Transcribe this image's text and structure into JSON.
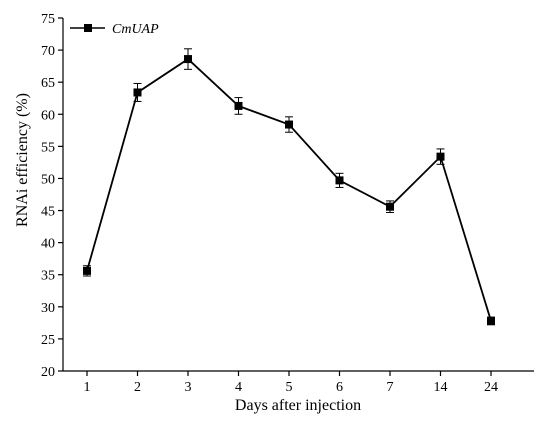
{
  "chart_data": {
    "type": "line",
    "xlabel": "Days after injection",
    "ylabel": "RNAi efficiency (%)",
    "categories": [
      "1",
      "2",
      "3",
      "4",
      "5",
      "6",
      "7",
      "14",
      "24"
    ],
    "ylim": [
      20,
      75
    ],
    "yticks": [
      20,
      25,
      30,
      35,
      40,
      45,
      50,
      55,
      60,
      65,
      70,
      75
    ],
    "legend_position": "top-left",
    "series": [
      {
        "name": "CmUAP",
        "values": [
          35.6,
          63.4,
          68.6,
          61.3,
          58.4,
          49.7,
          45.6,
          53.4,
          27.8
        ],
        "errors": [
          0.8,
          1.4,
          1.6,
          1.3,
          1.2,
          1.1,
          0.9,
          1.2,
          0.6
        ],
        "color": "#000000",
        "marker": "square"
      }
    ]
  }
}
